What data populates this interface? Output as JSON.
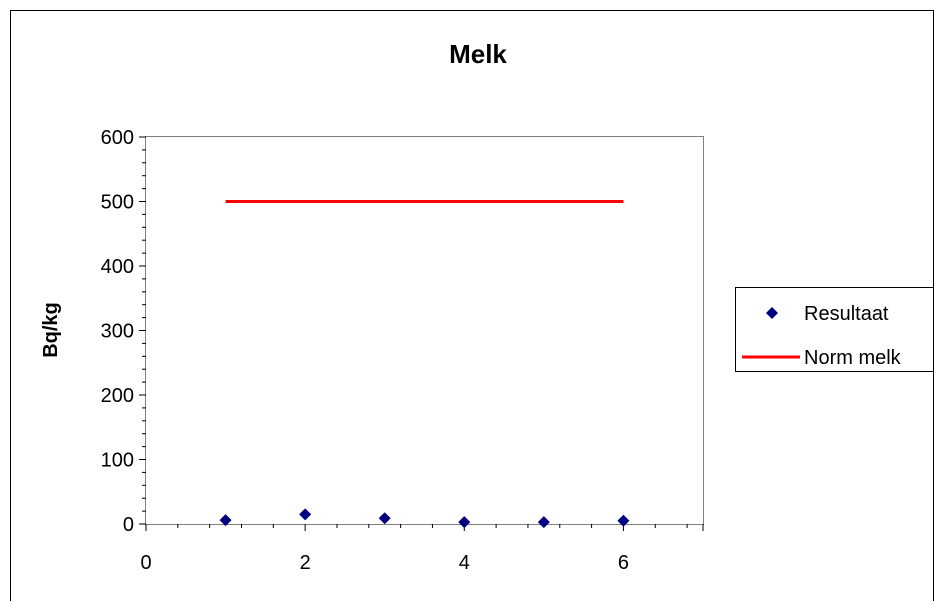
{
  "chart_data": {
    "type": "scatter",
    "title": "Melk",
    "xlabel": "",
    "ylabel": "Bq/kg",
    "xlim": [
      0,
      7
    ],
    "ylim": [
      0,
      600
    ],
    "x_ticks": [
      0,
      2,
      4,
      6
    ],
    "y_ticks": [
      0,
      100,
      200,
      300,
      400,
      500,
      600
    ],
    "grid": false,
    "legend_position": "right",
    "series": [
      {
        "name": "Resultaat",
        "kind": "markers",
        "marker": "diamond",
        "color": "#000080",
        "x": [
          1,
          2,
          3,
          4,
          5,
          6
        ],
        "y": [
          6,
          15,
          9,
          3,
          3,
          5
        ]
      },
      {
        "name": "Norm melk",
        "kind": "line",
        "color": "#ff0000",
        "x": [
          1,
          2,
          3,
          4,
          5,
          6
        ],
        "y": [
          500,
          500,
          500,
          500,
          500,
          500
        ]
      }
    ]
  }
}
